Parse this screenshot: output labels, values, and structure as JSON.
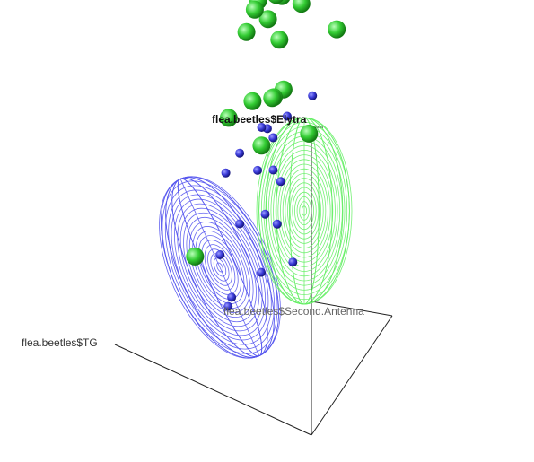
{
  "chart_data": {
    "type": "scatter",
    "projection": "3d",
    "title": "",
    "axes": {
      "x": {
        "label": "flea.beetles$TG"
      },
      "y": {
        "label": "flea.beetles$Second.Antenna"
      },
      "z": {
        "label": "flea.beetles$Elytra"
      }
    },
    "grid": false,
    "legend": "none",
    "series": [
      {
        "color": "#3a3ad8",
        "ellipsoid_color": "#5555ee",
        "marker": "small-sphere",
        "points": [
          [
            0.2,
            0.5,
            0.85
          ],
          [
            0.35,
            0.55,
            0.72
          ],
          [
            0.38,
            0.45,
            0.68
          ],
          [
            0.45,
            0.55,
            0.65
          ],
          [
            0.3,
            0.35,
            0.6
          ],
          [
            0.5,
            0.6,
            0.62
          ],
          [
            0.48,
            0.5,
            0.6
          ],
          [
            0.55,
            0.45,
            0.58
          ],
          [
            0.4,
            0.5,
            0.55
          ],
          [
            0.5,
            0.55,
            0.5
          ],
          [
            0.6,
            0.4,
            0.52
          ],
          [
            0.42,
            0.45,
            0.42
          ],
          [
            0.38,
            0.5,
            0.38
          ],
          [
            0.55,
            0.45,
            0.35
          ],
          [
            0.3,
            0.5,
            0.28
          ],
          [
            0.42,
            0.4,
            0.25
          ],
          [
            0.65,
            0.45,
            0.22
          ],
          [
            0.55,
            0.35,
            0.15
          ],
          [
            0.58,
            0.38,
            0.1
          ]
        ]
      },
      {
        "color": "#33cc33",
        "ellipsoid_color": "#66ee66",
        "marker": "large-sphere",
        "points": [
          [
            0.2,
            0.8,
            0.95
          ],
          [
            0.45,
            0.85,
            1.0
          ],
          [
            0.38,
            0.8,
            0.98
          ],
          [
            0.5,
            0.85,
            0.95
          ],
          [
            0.55,
            0.9,
            0.92
          ],
          [
            0.62,
            0.85,
            0.9
          ],
          [
            0.55,
            0.8,
            0.88
          ],
          [
            0.65,
            0.88,
            0.85
          ],
          [
            0.5,
            0.82,
            0.82
          ],
          [
            0.68,
            0.85,
            0.78
          ],
          [
            0.45,
            0.75,
            0.7
          ],
          [
            0.5,
            0.75,
            0.66
          ],
          [
            0.52,
            0.78,
            0.64
          ],
          [
            0.62,
            0.78,
            0.6
          ],
          [
            0.3,
            0.7,
            0.62
          ],
          [
            0.55,
            0.72,
            0.5
          ],
          [
            0.75,
            0.8,
            0.5
          ],
          [
            0.88,
            0.7,
            0.05
          ]
        ]
      }
    ]
  }
}
